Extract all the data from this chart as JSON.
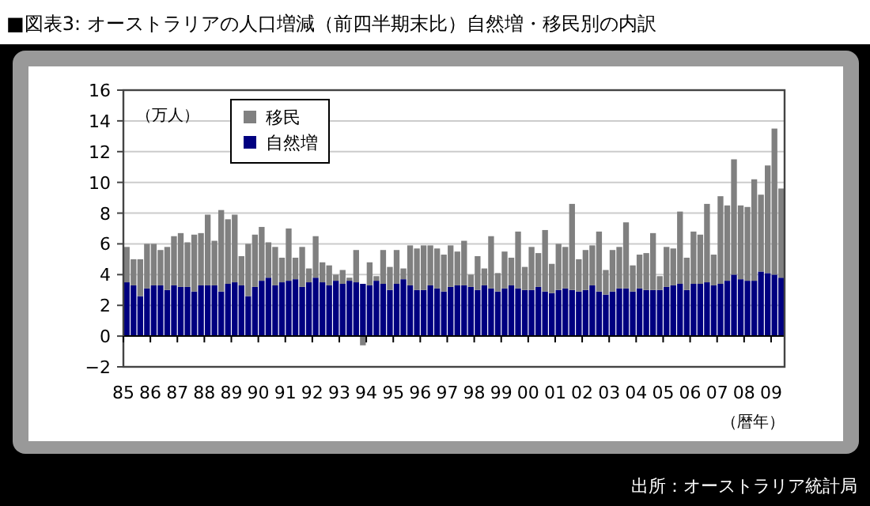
{
  "chart_data": {
    "type": "bar",
    "stacked": true,
    "title": "■図表3: オーストラリアの人口増減（前四半期末比）自然増・移民別の内訳",
    "ylabel": "（万人）",
    "xlabel": "（暦年）",
    "annotations": [
      "出所：オーストラリア統計局"
    ],
    "categories": [
      "85",
      null,
      null,
      null,
      "86",
      null,
      null,
      null,
      "87",
      null,
      null,
      null,
      "88",
      null,
      null,
      null,
      "89",
      null,
      null,
      null,
      "90",
      null,
      null,
      null,
      "91",
      null,
      null,
      null,
      "92",
      null,
      null,
      null,
      "93",
      null,
      null,
      null,
      "94",
      null,
      null,
      null,
      "95",
      null,
      null,
      null,
      "96",
      null,
      null,
      null,
      "97",
      null,
      null,
      null,
      "98",
      null,
      null,
      null,
      "99",
      null,
      null,
      null,
      "00",
      null,
      null,
      null,
      "01",
      null,
      null,
      null,
      "02",
      null,
      null,
      null,
      "03",
      null,
      null,
      null,
      "04",
      null,
      null,
      null,
      "05",
      null,
      null,
      null,
      "06",
      null,
      null,
      null,
      "07",
      null,
      null,
      null,
      "08",
      null,
      null,
      null,
      "09",
      null
    ],
    "series": [
      {
        "name": "自然増",
        "color": "#000080",
        "values": [
          3.5,
          3.3,
          2.6,
          3.1,
          3.3,
          3.3,
          3.0,
          3.3,
          3.2,
          3.2,
          2.9,
          3.3,
          3.3,
          3.3,
          2.9,
          3.4,
          3.5,
          3.3,
          2.6,
          3.2,
          3.6,
          3.8,
          3.3,
          3.5,
          3.6,
          3.7,
          3.2,
          3.5,
          3.8,
          3.5,
          3.3,
          3.6,
          3.4,
          3.6,
          3.5,
          3.4,
          3.3,
          3.6,
          3.4,
          3.0,
          3.4,
          3.7,
          3.3,
          3.0,
          3.0,
          3.3,
          3.1,
          2.9,
          3.2,
          3.3,
          3.3,
          3.2,
          3.0,
          3.3,
          3.1,
          2.9,
          3.1,
          3.3,
          3.1,
          3.0,
          3.0,
          3.2,
          2.9,
          2.8,
          3.0,
          3.1,
          3.0,
          2.9,
          3.0,
          3.3,
          2.9,
          2.7,
          2.9,
          3.1,
          3.1,
          2.9,
          3.1,
          3.0,
          3.0,
          3.0,
          3.2,
          3.3,
          3.4,
          3.0,
          3.4,
          3.4,
          3.5,
          3.3,
          3.4,
          3.6,
          4.0,
          3.7,
          3.6,
          3.6,
          4.2,
          4.1,
          4.0,
          3.8
        ]
      },
      {
        "name": "移民",
        "color": "#808080",
        "values": [
          2.3,
          1.7,
          2.4,
          2.9,
          2.7,
          2.3,
          2.8,
          3.2,
          3.5,
          2.9,
          3.7,
          3.4,
          4.6,
          2.9,
          5.3,
          4.2,
          4.4,
          1.9,
          3.4,
          3.4,
          3.5,
          2.3,
          2.5,
          1.6,
          3.4,
          1.4,
          2.6,
          0.9,
          2.7,
          1.3,
          1.3,
          0.4,
          0.9,
          0.2,
          2.1,
          -0.6,
          1.5,
          0.3,
          2.2,
          1.5,
          2.2,
          0.7,
          2.6,
          2.7,
          2.9,
          2.6,
          2.6,
          2.4,
          2.7,
          2.2,
          2.9,
          0.8,
          2.2,
          1.1,
          3.4,
          1.2,
          2.4,
          1.8,
          3.7,
          1.5,
          2.8,
          2.2,
          4.0,
          1.9,
          3.0,
          2.7,
          5.6,
          2.1,
          2.6,
          2.6,
          3.9,
          1.6,
          2.7,
          2.7,
          4.3,
          1.7,
          2.2,
          2.4,
          3.7,
          0.9,
          2.6,
          2.4,
          4.7,
          2.1,
          3.4,
          3.2,
          5.1,
          2.0,
          5.7,
          4.9,
          7.5,
          4.8,
          4.8,
          6.6,
          5.0,
          7.0,
          9.5,
          5.8
        ]
      }
    ],
    "ylim": [
      -2,
      16
    ],
    "yticks": [
      -2,
      0,
      2,
      4,
      6,
      8,
      10,
      12,
      14,
      16
    ],
    "grid": "y",
    "legend": "top left"
  }
}
